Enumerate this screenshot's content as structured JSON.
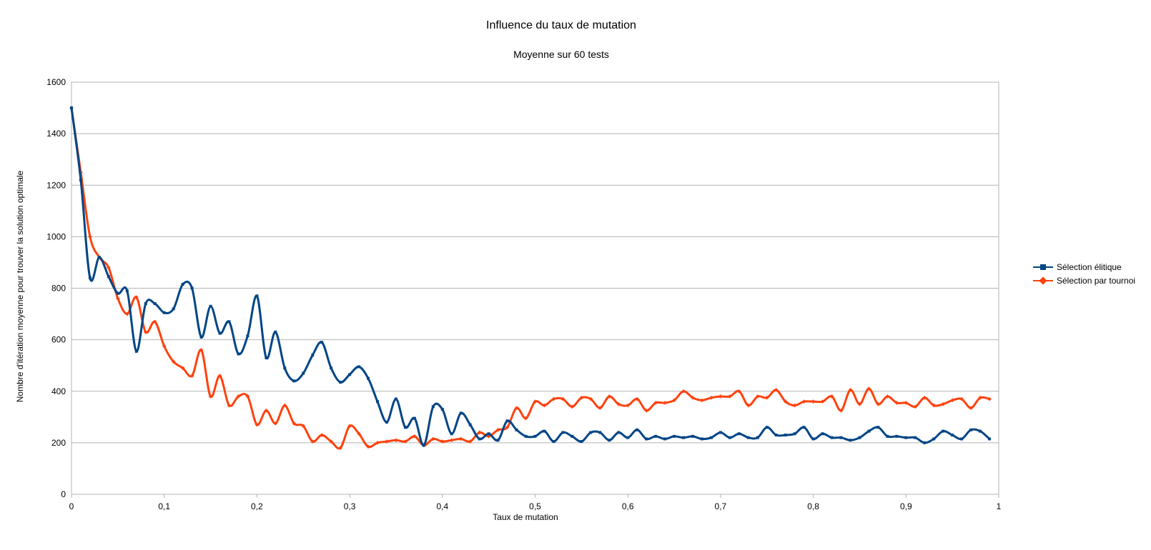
{
  "chart_data": {
    "type": "line",
    "title": "Influence du taux de mutation",
    "subtitle": "Moyenne sur 60 tests",
    "xlabel": "Taux de mutation",
    "ylabel": "Nombre d'itération moyenne pour trouver la solution optimale",
    "xlim": [
      0,
      1
    ],
    "ylim": [
      0,
      1600
    ],
    "xticks": [
      0,
      0.1,
      0.2,
      0.3,
      0.4,
      0.5,
      0.6,
      0.7,
      0.8,
      0.9,
      1
    ],
    "xtick_labels": [
      "0",
      "0,1",
      "0,2",
      "0,3",
      "0,4",
      "0,5",
      "0,6",
      "0,7",
      "0,8",
      "0,9",
      "1"
    ],
    "yticks": [
      0,
      200,
      400,
      600,
      800,
      1000,
      1200,
      1400,
      1600
    ],
    "ytick_labels": [
      "0",
      "200",
      "400",
      "600",
      "800",
      "1000",
      "1200",
      "1400",
      "1600"
    ],
    "grid": "horizontal",
    "legend_position": "right",
    "x": [
      0,
      0.01,
      0.02,
      0.03,
      0.04,
      0.05,
      0.06,
      0.07,
      0.08,
      0.09,
      0.1,
      0.11,
      0.12,
      0.13,
      0.14,
      0.15,
      0.16,
      0.17,
      0.18,
      0.19,
      0.2,
      0.21,
      0.22,
      0.23,
      0.24,
      0.25,
      0.26,
      0.27,
      0.28,
      0.29,
      0.3,
      0.31,
      0.32,
      0.33,
      0.34,
      0.35,
      0.36,
      0.37,
      0.38,
      0.39,
      0.4,
      0.41,
      0.42,
      0.43,
      0.44,
      0.45,
      0.46,
      0.47,
      0.48,
      0.49,
      0.5,
      0.51,
      0.52,
      0.53,
      0.54,
      0.55,
      0.56,
      0.57,
      0.58,
      0.59,
      0.6,
      0.61,
      0.62,
      0.63,
      0.64,
      0.65,
      0.66,
      0.67,
      0.68,
      0.69,
      0.7,
      0.71,
      0.72,
      0.73,
      0.74,
      0.75,
      0.76,
      0.77,
      0.78,
      0.79,
      0.8,
      0.81,
      0.82,
      0.83,
      0.84,
      0.85,
      0.86,
      0.87,
      0.88,
      0.89,
      0.9,
      0.91,
      0.92,
      0.93,
      0.94,
      0.95,
      0.96,
      0.97,
      0.98,
      0.99
    ],
    "series": [
      {
        "name": "Sélection élitique",
        "color": "#004586",
        "marker": "square",
        "values": [
          1500,
          1220,
          840,
          920,
          845,
          780,
          790,
          555,
          740,
          740,
          705,
          720,
          815,
          800,
          610,
          730,
          625,
          670,
          545,
          615,
          770,
          530,
          630,
          490,
          440,
          470,
          540,
          590,
          490,
          435,
          465,
          495,
          450,
          360,
          280,
          370,
          260,
          295,
          190,
          340,
          330,
          235,
          315,
          270,
          215,
          235,
          210,
          285,
          250,
          225,
          225,
          245,
          205,
          240,
          225,
          205,
          240,
          240,
          210,
          240,
          220,
          250,
          215,
          225,
          215,
          225,
          220,
          225,
          215,
          220,
          240,
          220,
          235,
          220,
          220,
          260,
          230,
          230,
          235,
          260,
          215,
          235,
          220,
          220,
          210,
          220,
          245,
          260,
          225,
          225,
          220,
          220,
          200,
          215,
          245,
          230,
          215,
          250,
          245,
          215
        ]
      },
      {
        "name": "Sélection par tournoi",
        "color": "#ff420e",
        "marker": "diamond",
        "values": [
          1500,
          1250,
          1000,
          920,
          880,
          760,
          700,
          765,
          630,
          670,
          575,
          515,
          490,
          460,
          560,
          380,
          460,
          345,
          380,
          380,
          270,
          325,
          275,
          345,
          275,
          265,
          205,
          230,
          205,
          180,
          265,
          235,
          185,
          200,
          205,
          210,
          205,
          225,
          190,
          215,
          205,
          210,
          215,
          205,
          240,
          225,
          250,
          260,
          335,
          295,
          360,
          345,
          370,
          370,
          340,
          375,
          370,
          335,
          380,
          350,
          345,
          370,
          325,
          355,
          355,
          365,
          400,
          375,
          365,
          375,
          380,
          380,
          400,
          345,
          380,
          375,
          405,
          360,
          345,
          360,
          360,
          360,
          380,
          325,
          405,
          350,
          410,
          350,
          380,
          355,
          355,
          340,
          375,
          345,
          350,
          365,
          370,
          335,
          375,
          370
        ]
      }
    ]
  }
}
